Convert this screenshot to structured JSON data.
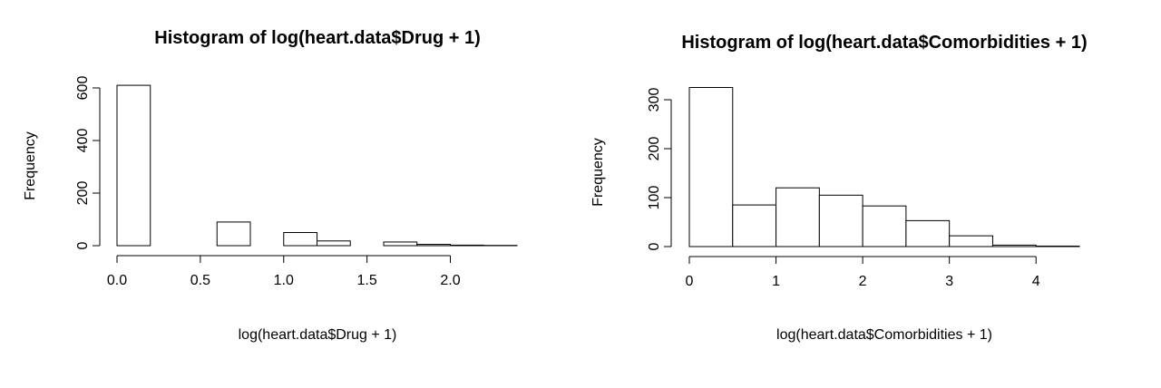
{
  "chart_data": [
    {
      "type": "bar",
      "title": "Histogram of log(heart.data$Drug + 1)",
      "xlabel": "log(heart.data$Drug + 1)",
      "ylabel": "Frequency",
      "bin_edges": [
        0.0,
        0.2,
        0.4,
        0.6,
        0.8,
        1.0,
        1.2,
        1.4,
        1.6,
        1.8,
        2.0,
        2.2,
        2.4
      ],
      "values": [
        610,
        0,
        0,
        90,
        0,
        50,
        18,
        0,
        14,
        5,
        2,
        1
      ],
      "xlim": [
        0.0,
        2.4
      ],
      "ylim": [
        0,
        600
      ],
      "x_ticks": [
        0.0,
        0.5,
        1.0,
        1.5,
        2.0
      ],
      "x_tick_labels": [
        "0.0",
        "0.5",
        "1.0",
        "1.5",
        "2.0"
      ],
      "y_ticks": [
        0,
        200,
        400,
        600
      ],
      "y_tick_labels": [
        "0",
        "200",
        "400",
        "600"
      ],
      "grid": false
    },
    {
      "type": "bar",
      "title": "Histogram of log(heart.data$Comorbidities + 1)",
      "xlabel": "log(heart.data$Comorbidities + 1)",
      "ylabel": "Frequency",
      "bin_edges": [
        0.0,
        0.5,
        1.0,
        1.5,
        2.0,
        2.5,
        3.0,
        3.5,
        4.0,
        4.5
      ],
      "values": [
        325,
        85,
        120,
        105,
        83,
        53,
        22,
        3,
        1
      ],
      "xlim": [
        0,
        4.5
      ],
      "ylim": [
        0,
        300
      ],
      "x_ticks": [
        0,
        1,
        2,
        3,
        4
      ],
      "x_tick_labels": [
        "0",
        "1",
        "2",
        "3",
        "4"
      ],
      "y_ticks": [
        0,
        100,
        200,
        300
      ],
      "y_tick_labels": [
        "0",
        "100",
        "200",
        "300"
      ],
      "grid": false
    }
  ]
}
